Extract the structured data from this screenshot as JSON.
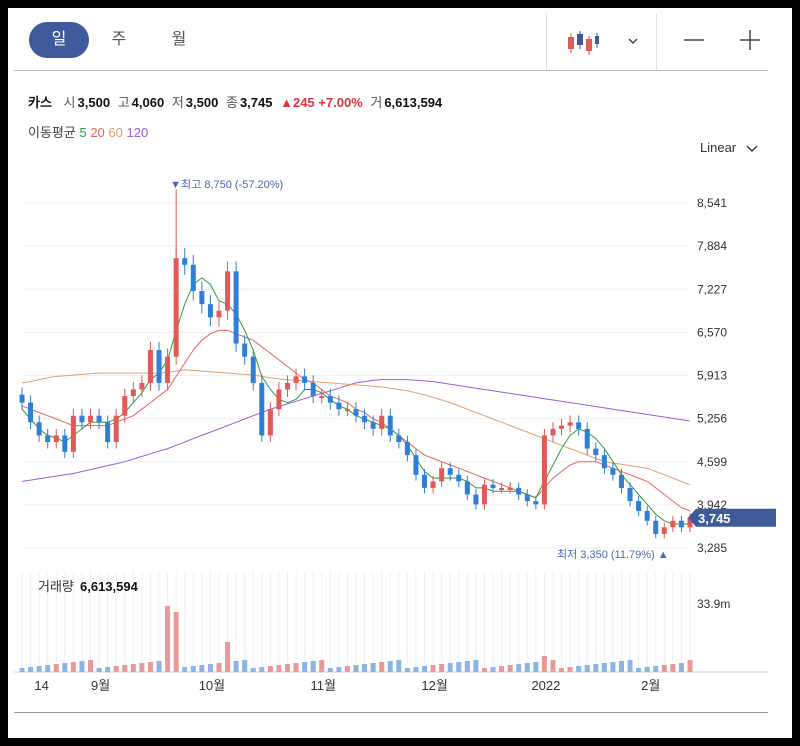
{
  "tabs": [
    {
      "label": "일",
      "active": true
    },
    {
      "label": "주",
      "active": false
    },
    {
      "label": "월",
      "active": false
    }
  ],
  "toolbar": {
    "zoom_out": "—",
    "zoom_in": "+",
    "chart_icon": "candlestick-icon",
    "dropdown_icon": "chevron-down-icon"
  },
  "info": {
    "name": "카스",
    "open_label": "시",
    "open": "3,500",
    "high_label": "고",
    "high": "4,060",
    "low_label": "저",
    "low": "3,500",
    "close_label": "종",
    "close": "3,745",
    "change": "▲245 +7.00%",
    "volume_label": "거",
    "volume": "6,613,594"
  },
  "ma": {
    "label": "이동평균",
    "periods": [
      "5",
      "20",
      "60",
      "120"
    ],
    "colors": [
      "#2e9e3e",
      "#e06666",
      "#e0a070",
      "#9a5fd6"
    ]
  },
  "scale_label": "Linear",
  "colors": {
    "up": "#e05a5a",
    "down": "#2f7fd6",
    "accent": "#3e5a9a"
  },
  "chart_data": {
    "type": "candlestick",
    "y_ticks": [
      "8,541",
      "7,884",
      "7,227",
      "6,570",
      "5,913",
      "5,256",
      "4,599",
      "3,942",
      "3,285"
    ],
    "y_values": [
      8541,
      7884,
      7227,
      6570,
      5913,
      5256,
      4599,
      3942,
      3285
    ],
    "x_ticks": [
      "14",
      "9월",
      "10월",
      "11월",
      "12월",
      "2022",
      "2월"
    ],
    "current_price": "3,745",
    "max_annotation": "▼최고 8,750 (-57.20%)",
    "min_annotation": "최저 3,350 (11.79%) ▲",
    "volume_label": "거래량",
    "volume_value": "6,613,594",
    "volume_axis": "33.9m",
    "close_path": [
      5500,
      5200,
      5000,
      4900,
      5000,
      4750,
      5300,
      5200,
      5300,
      5200,
      4900,
      5300,
      5600,
      5700,
      5800,
      6300,
      5800,
      6200,
      7700,
      7600,
      7200,
      7000,
      6800,
      6900,
      7500,
      6400,
      6200,
      5800,
      5000,
      5400,
      5700,
      5800,
      5900,
      5800,
      5600,
      5600,
      5500,
      5400,
      5400,
      5300,
      5200,
      5100,
      5300,
      5000,
      4900,
      4700,
      4400,
      4200,
      4300,
      4500,
      4400,
      4300,
      4100,
      3950,
      4250,
      4200,
      4200,
      4200,
      4100,
      4000,
      3950,
      5000,
      5100,
      5150,
      5200,
      5100,
      4800,
      4700,
      4500,
      4400,
      4200,
      4000,
      3850,
      3700,
      3500,
      3600,
      3700,
      3600,
      3745
    ],
    "ma5": [
      5400,
      5250,
      5100,
      5000,
      4960,
      4900,
      5000,
      5100,
      5200,
      5200,
      5200,
      5250,
      5350,
      5500,
      5650,
      5850,
      5950,
      6150,
      6600,
      7000,
      7300,
      7400,
      7300,
      7050,
      7000,
      6850,
      6600,
      6300,
      5900,
      5700,
      5550,
      5500,
      5550,
      5700,
      5700,
      5650,
      5550,
      5450,
      5400,
      5300,
      5250,
      5200,
      5150,
      5100,
      5000,
      4850,
      4650,
      4450,
      4350,
      4350,
      4350,
      4350,
      4300,
      4200,
      4200,
      4150,
      4150,
      4150,
      4150,
      4100,
      4050,
      4300,
      4550,
      4800,
      5000,
      5100,
      5050,
      4950,
      4800,
      4600,
      4400,
      4250,
      4100,
      3950,
      3800,
      3700,
      3650,
      3650,
      3650
    ],
    "ma20": [
      5450,
      5400,
      5350,
      5300,
      5250,
      5200,
      5150,
      5150,
      5150,
      5150,
      5150,
      5200,
      5250,
      5300,
      5400,
      5500,
      5600,
      5700,
      5900,
      6100,
      6300,
      6450,
      6550,
      6600,
      6600,
      6550,
      6500,
      6450,
      6350,
      6250,
      6150,
      6050,
      5950,
      5850,
      5800,
      5700,
      5600,
      5550,
      5500,
      5400,
      5350,
      5250,
      5200,
      5100,
      5000,
      4900,
      4800,
      4700,
      4650,
      4600,
      4550,
      4500,
      4450,
      4400,
      4350,
      4300,
      4250,
      4200,
      4150,
      4100,
      4050,
      4200,
      4350,
      4450,
      4550,
      4600,
      4600,
      4600,
      4550,
      4500,
      4450,
      4400,
      4350,
      4300,
      4200,
      4100,
      4000,
      3900,
      3850
    ],
    "ma60": [
      5800,
      5820,
      5850,
      5880,
      5900,
      5910,
      5920,
      5930,
      5940,
      5950,
      5950,
      5950,
      5950,
      5950,
      5950,
      5950,
      5950,
      5960,
      5980,
      6000,
      5990,
      5980,
      5970,
      5960,
      5950,
      5940,
      5930,
      5920,
      5900,
      5880,
      5860,
      5850,
      5840,
      5830,
      5820,
      5810,
      5800,
      5790,
      5780,
      5770,
      5760,
      5750,
      5740,
      5720,
      5700,
      5680,
      5650,
      5620,
      5580,
      5540,
      5500,
      5450,
      5400,
      5350,
      5300,
      5250,
      5200,
      5150,
      5100,
      5050,
      5000,
      4950,
      4900,
      4850,
      4800,
      4750,
      4700,
      4650,
      4600,
      4580,
      4560,
      4540,
      4520,
      4500,
      4450,
      4400,
      4350,
      4300,
      4250
    ],
    "ma120": [
      4300,
      4320,
      4340,
      4360,
      4380,
      4400,
      4420,
      4450,
      4480,
      4510,
      4540,
      4570,
      4600,
      4640,
      4680,
      4720,
      4760,
      4800,
      4850,
      4900,
      4950,
      5000,
      5050,
      5100,
      5150,
      5200,
      5250,
      5300,
      5350,
      5400,
      5440,
      5480,
      5520,
      5560,
      5600,
      5640,
      5680,
      5720,
      5760,
      5800,
      5820,
      5840,
      5850,
      5850,
      5850,
      5850,
      5840,
      5830,
      5820,
      5800,
      5780,
      5760,
      5740,
      5720,
      5700,
      5680,
      5660,
      5640,
      5620,
      5600,
      5580,
      5560,
      5540,
      5520,
      5500,
      5480,
      5460,
      5440,
      5420,
      5400,
      5380,
      5360,
      5340,
      5320,
      5300,
      5280,
      5260,
      5240,
      5220
    ]
  }
}
